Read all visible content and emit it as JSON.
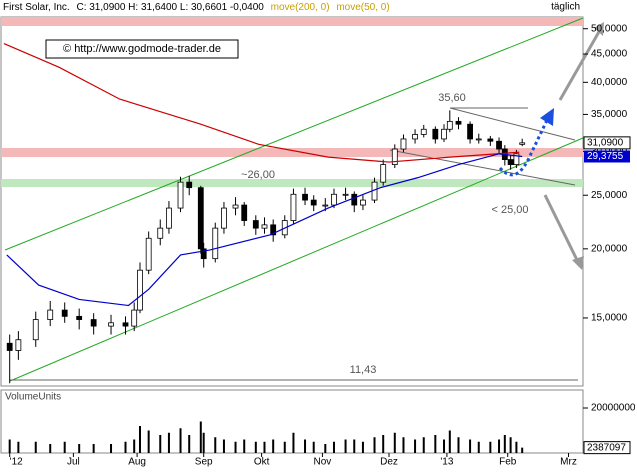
{
  "header": {
    "name": "First Solar, Inc.",
    "stats": "C: 31,0900 H: 31,6400 L: 30,6601 -0,0400",
    "ma1": "move(200, 0)",
    "ma2": "move(50, 0)",
    "period": "täglich"
  },
  "chart_data": {
    "type": "candlestick",
    "copyright": "© http://www.godmode-trader.de",
    "x": [
      0,
      3,
      9,
      14,
      19,
      24,
      29,
      35,
      40,
      43,
      45,
      48,
      52,
      55,
      59,
      62,
      66,
      67,
      71,
      74,
      78,
      81,
      85,
      88,
      91,
      95,
      98,
      102,
      105,
      109,
      112,
      116,
      119,
      122,
      126,
      129,
      133,
      136,
      140,
      143,
      147,
      150,
      152,
      155,
      159,
      162,
      166,
      169,
      171,
      173,
      175,
      177
    ],
    "open": [
      13.5,
      13.1,
      13.7,
      14.9,
      15.5,
      15.1,
      14.9,
      14.5,
      14.7,
      14.5,
      15.5,
      18.3,
      20.9,
      21.8,
      23.7,
      26.4,
      25.8,
      20.0,
      19.2,
      21.8,
      23.7,
      24.0,
      22.5,
      21.8,
      22.1,
      21.2,
      22.5,
      25.1,
      24.5,
      24.0,
      24.0,
      25.1,
      25.1,
      24.0,
      24.5,
      26.4,
      28.4,
      30.3,
      31.6,
      32.2,
      32.9,
      31.6,
      32.9,
      34.0,
      33.6,
      31.6,
      31.6,
      31.3,
      30.3,
      29.0,
      28.4,
      30.9
    ],
    "high": [
      14.0,
      14.2,
      15.4,
      16.1,
      16.0,
      15.6,
      15.3,
      15.2,
      15.1,
      16.0,
      18.9,
      21.5,
      22.6,
      24.4,
      27.0,
      27.1,
      26.0,
      20.5,
      22.3,
      24.3,
      24.8,
      24.3,
      23.0,
      22.8,
      22.6,
      23.0,
      25.7,
      25.8,
      25.0,
      24.7,
      25.7,
      25.8,
      25.4,
      25.0,
      26.9,
      29.0,
      30.9,
      32.2,
      32.9,
      33.5,
      33.3,
      33.6,
      35.6,
      34.6,
      34.0,
      32.3,
      32.0,
      31.8,
      30.8,
      29.5,
      30.2,
      31.64
    ],
    "low": [
      11.43,
      12.6,
      13.3,
      14.5,
      14.7,
      14.3,
      14.0,
      14.0,
      14.0,
      14.2,
      15.3,
      18.0,
      20.3,
      21.3,
      23.3,
      25.0,
      19.6,
      18.5,
      18.9,
      21.3,
      23.0,
      22.0,
      21.2,
      21.3,
      20.6,
      20.9,
      22.2,
      24.0,
      23.4,
      23.4,
      23.7,
      24.5,
      23.3,
      23.5,
      24.2,
      26.0,
      28.0,
      29.9,
      31.0,
      31.8,
      31.0,
      31.2,
      32.5,
      32.9,
      31.0,
      31.0,
      30.7,
      29.7,
      28.3,
      27.8,
      28.0,
      30.66
    ],
    "close": [
      13.1,
      13.7,
      14.9,
      15.5,
      15.1,
      14.9,
      14.5,
      14.7,
      14.5,
      15.5,
      18.3,
      20.9,
      21.8,
      23.7,
      26.4,
      25.8,
      20.0,
      19.2,
      21.8,
      23.7,
      24.0,
      22.5,
      21.8,
      22.1,
      21.2,
      22.5,
      25.1,
      24.5,
      24.0,
      24.0,
      25.1,
      25.1,
      24.0,
      24.5,
      26.4,
      28.4,
      30.3,
      31.6,
      32.2,
      32.9,
      31.6,
      32.9,
      34.0,
      33.6,
      31.6,
      31.6,
      31.3,
      30.3,
      29.0,
      28.4,
      29.7,
      31.09
    ],
    "close_label": "31,0900",
    "moving_averages": [
      {
        "color": "#cc0000",
        "x": [
          -2,
          17,
          38,
          66,
          86,
          110,
          131,
          152,
          176
        ],
        "values": [
          47.0,
          42.6,
          37.3,
          33.6,
          30.9,
          29.3,
          28.7,
          29.3,
          29.9
        ]
      },
      {
        "color": "#0000cc",
        "x": [
          -1,
          10,
          24,
          41,
          48,
          59,
          69,
          90,
          110,
          128,
          141,
          155,
          169,
          177
        ],
        "values": [
          19.5,
          17.2,
          16.2,
          15.8,
          16.9,
          19.5,
          19.9,
          21.2,
          23.7,
          25.8,
          26.9,
          28.4,
          29.7,
          29.3755
        ],
        "value_labels": [
          null,
          null,
          null,
          null,
          null,
          null,
          null,
          null,
          null,
          null,
          null,
          null,
          null,
          "29,3755"
        ]
      }
    ],
    "annotations": [
      "35,60",
      "~26,00",
      "< 25,00",
      "11,43"
    ],
    "xlim": [
      -3,
      198
    ],
    "xticks": [
      {
        "value": 0,
        "label": "'12"
      },
      {
        "value": 22,
        "label": "Jul"
      },
      {
        "value": 44,
        "label": "Aug"
      },
      {
        "value": 67,
        "label": "Sep"
      },
      {
        "value": 87,
        "label": "Okt"
      },
      {
        "value": 108,
        "label": "Nov"
      },
      {
        "value": 131,
        "label": "Dez"
      },
      {
        "value": 151,
        "label": "'13"
      },
      {
        "value": 172,
        "label": "Feb"
      },
      {
        "value": 193,
        "label": "Mrz"
      }
    ],
    "ylim": [
      11.3,
      52.5
    ],
    "log_scale": true,
    "yticks": [
      {
        "value": 50,
        "label": "50,0000"
      },
      {
        "value": 45,
        "label": "45,0000"
      },
      {
        "value": 40,
        "label": "40,0000"
      },
      {
        "value": 35,
        "label": "35,0000"
      },
      {
        "value": 30,
        "label": "30,0000"
      },
      {
        "value": 25,
        "label": "25,0000"
      },
      {
        "value": 20,
        "label": "20,0000"
      },
      {
        "value": 15,
        "label": "15,0000"
      }
    ],
    "volume": {
      "label": "VolumeUnits",
      "color": "#000000",
      "values": [
        6000000,
        5000000,
        5000000,
        4000000,
        5000000,
        4000000,
        4000000,
        4000000,
        5000000,
        6000000,
        12000000,
        10000000,
        8000000,
        9000000,
        11000000,
        8000000,
        14000000,
        9000000,
        7000000,
        6000000,
        5000000,
        6000000,
        5000000,
        5000000,
        6000000,
        5000000,
        9000000,
        6000000,
        5000000,
        4000000,
        5000000,
        6000000,
        6000000,
        5000000,
        7000000,
        8000000,
        9000000,
        7000000,
        6000000,
        7000000,
        8000000,
        6000000,
        10000000,
        7000000,
        6000000,
        5000000,
        5000000,
        6000000,
        8000000,
        7000000,
        5000000,
        2387097
      ],
      "ylim": [
        0,
        28000000
      ],
      "yticks": [
        {
          "value": 20000000,
          "label": "20000000"
        }
      ]
    }
  }
}
